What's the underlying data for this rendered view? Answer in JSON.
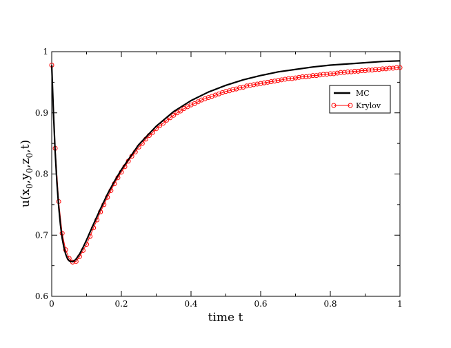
{
  "chart_data": {
    "type": "line",
    "title": "",
    "xlabel": "time t",
    "ylabel": "u(x",
    "ylabel_parts": [
      "u(x",
      "0",
      ",y",
      "0",
      ",z",
      "0",
      ",t)"
    ],
    "xlim": [
      0,
      1
    ],
    "ylim": [
      0.6,
      1
    ],
    "x_ticks": [
      0,
      0.2,
      0.4,
      0.6,
      0.8,
      1
    ],
    "x_tick_labels": [
      "0",
      "0.2",
      "0.4",
      "0.6",
      "0.8",
      "1"
    ],
    "y_ticks": [
      0.6,
      0.7,
      0.8,
      0.9,
      1
    ],
    "y_tick_labels": [
      "0.6",
      "0.7",
      "0.8",
      "0.9",
      "1"
    ],
    "grid": false,
    "legend_position": "top-right",
    "series": [
      {
        "name": "MC",
        "color": "#000000",
        "style": "solid-line",
        "x": [
          0,
          0.005,
          0.01,
          0.015,
          0.02,
          0.025,
          0.03,
          0.035,
          0.04,
          0.045,
          0.05,
          0.055,
          0.06,
          0.065,
          0.07,
          0.08,
          0.09,
          0.1,
          0.12,
          0.14,
          0.16,
          0.18,
          0.2,
          0.25,
          0.3,
          0.35,
          0.4,
          0.45,
          0.5,
          0.55,
          0.6,
          0.65,
          0.7,
          0.75,
          0.8,
          0.85,
          0.9,
          0.95,
          1.0
        ],
        "y": [
          0.978,
          0.9,
          0.835,
          0.785,
          0.747,
          0.717,
          0.695,
          0.68,
          0.669,
          0.662,
          0.658,
          0.657,
          0.657,
          0.658,
          0.661,
          0.669,
          0.68,
          0.692,
          0.718,
          0.743,
          0.767,
          0.788,
          0.807,
          0.848,
          0.878,
          0.902,
          0.92,
          0.934,
          0.945,
          0.954,
          0.961,
          0.967,
          0.971,
          0.975,
          0.978,
          0.98,
          0.982,
          0.984,
          0.985
        ]
      },
      {
        "name": "Krylov",
        "color": "#ff0000",
        "style": "line-circle-markers",
        "x": [
          0.0,
          0.01,
          0.02,
          0.03,
          0.04,
          0.05,
          0.06,
          0.07,
          0.08,
          0.09,
          0.1,
          0.11,
          0.12,
          0.13,
          0.14,
          0.15,
          0.16,
          0.17,
          0.18,
          0.19,
          0.2,
          0.21,
          0.22,
          0.23,
          0.24,
          0.25,
          0.26,
          0.27,
          0.28,
          0.29,
          0.3,
          0.31,
          0.32,
          0.33,
          0.34,
          0.35,
          0.36,
          0.37,
          0.38,
          0.39,
          0.4,
          0.41,
          0.42,
          0.43,
          0.44,
          0.45,
          0.46,
          0.47,
          0.48,
          0.49,
          0.5,
          0.51,
          0.52,
          0.53,
          0.54,
          0.55,
          0.56,
          0.57,
          0.58,
          0.59,
          0.6,
          0.61,
          0.62,
          0.63,
          0.64,
          0.65,
          0.66,
          0.67,
          0.68,
          0.69,
          0.7,
          0.71,
          0.72,
          0.73,
          0.74,
          0.75,
          0.76,
          0.77,
          0.78,
          0.79,
          0.8,
          0.81,
          0.82,
          0.83,
          0.84,
          0.85,
          0.86,
          0.87,
          0.88,
          0.89,
          0.9,
          0.91,
          0.92,
          0.93,
          0.94,
          0.95,
          0.96,
          0.97,
          0.98,
          0.99,
          1.0
        ],
        "y": [
          0.978,
          0.842,
          0.755,
          0.703,
          0.676,
          0.662,
          0.656,
          0.657,
          0.665,
          0.675,
          0.685,
          0.698,
          0.712,
          0.725,
          0.738,
          0.75,
          0.762,
          0.773,
          0.784,
          0.794,
          0.803,
          0.812,
          0.821,
          0.829,
          0.836,
          0.844,
          0.85,
          0.857,
          0.863,
          0.868,
          0.874,
          0.879,
          0.883,
          0.888,
          0.892,
          0.896,
          0.9,
          0.903,
          0.907,
          0.91,
          0.913,
          0.915,
          0.918,
          0.921,
          0.923,
          0.925,
          0.927,
          0.929,
          0.931,
          0.933,
          0.935,
          0.936,
          0.938,
          0.939,
          0.941,
          0.942,
          0.944,
          0.945,
          0.946,
          0.947,
          0.948,
          0.949,
          0.95,
          0.951,
          0.952,
          0.953,
          0.954,
          0.955,
          0.956,
          0.956,
          0.957,
          0.958,
          0.959,
          0.959,
          0.96,
          0.961,
          0.961,
          0.962,
          0.963,
          0.963,
          0.964,
          0.964,
          0.965,
          0.966,
          0.966,
          0.967,
          0.967,
          0.968,
          0.968,
          0.969,
          0.969,
          0.97,
          0.97,
          0.971,
          0.971,
          0.972,
          0.972,
          0.973,
          0.973,
          0.974,
          0.974
        ]
      }
    ]
  }
}
